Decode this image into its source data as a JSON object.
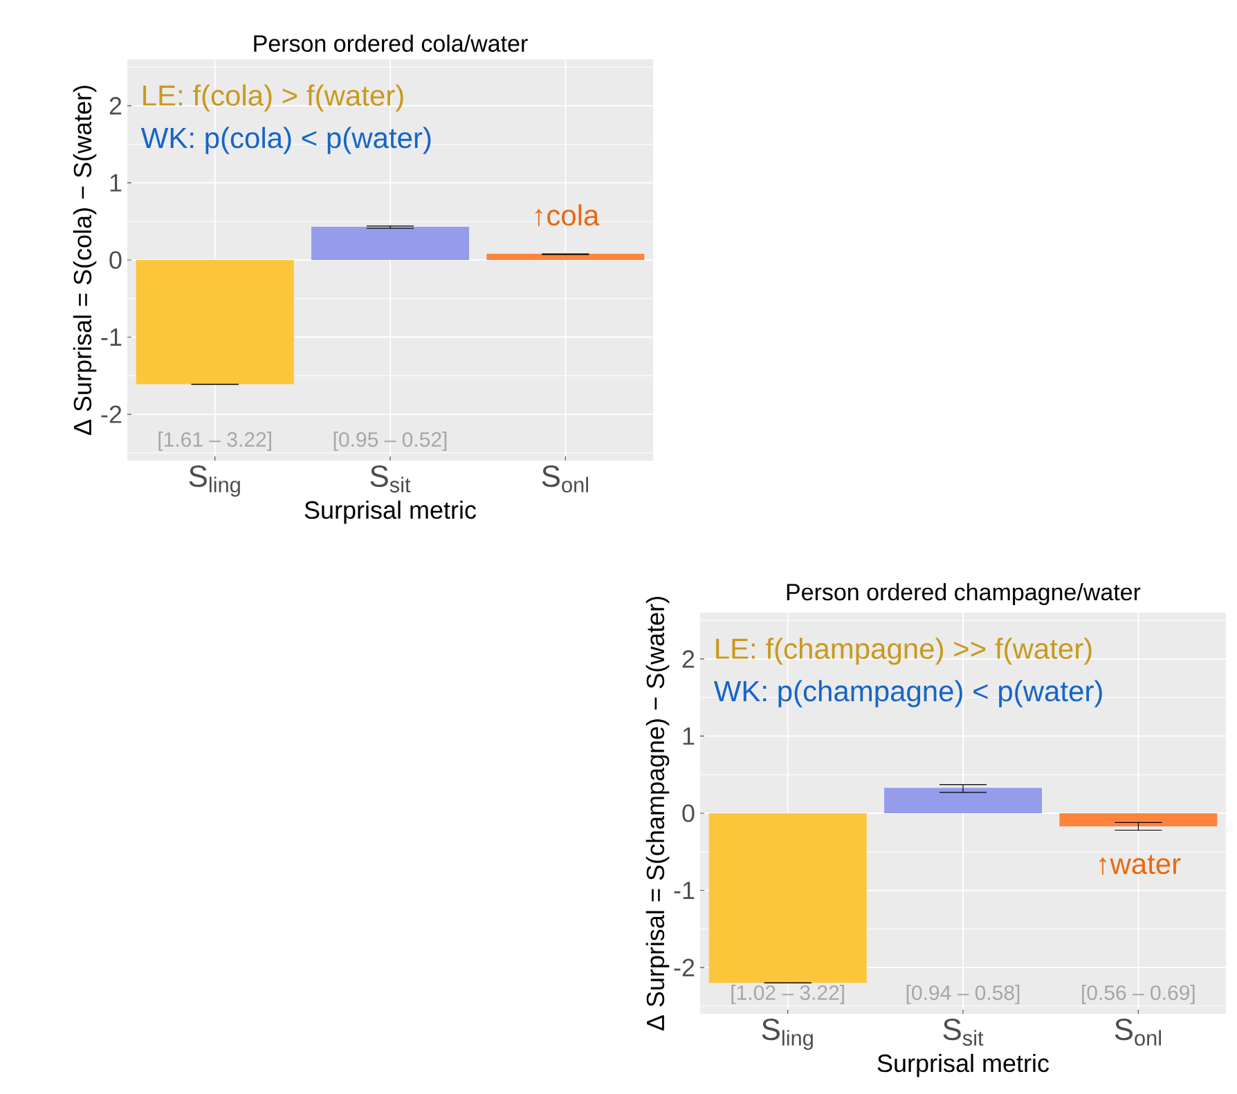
{
  "chart_data": [
    {
      "type": "bar",
      "title": "Person ordered cola/water",
      "xlabel": "Surprisal metric",
      "ylabel": "Δ Surprisal = S(cola) − S(water)",
      "categories": [
        "S$_{ling}$",
        "S$_{sit}$",
        "S$_{onl}$"
      ],
      "values": [
        -1.61,
        0.43,
        0.08
      ],
      "colors": [
        "#fcc63c",
        "#959cec",
        "#fe843d"
      ],
      "errors": [
        [
          -1.61,
          -1.61
        ],
        [
          0.41,
          0.44
        ],
        [
          0.07,
          0.08
        ]
      ],
      "ylim": [
        -2.6,
        2.6
      ],
      "yticks": [
        -2,
        -1,
        0,
        1,
        2
      ],
      "grid": true,
      "annotations": [
        "LE: f(cola) > f(water)",
        "WK: p(cola) < p(water)",
        "↑cola",
        "[1.61 – 3.22]",
        "[0.95 – 0.52]"
      ]
    },
    {
      "type": "bar",
      "title": "Person ordered champagne/water",
      "xlabel": "Surprisal metric",
      "ylabel": "Δ Surprisal = S(champagne) − S(water)",
      "categories": [
        "S$_{ling}$",
        "S$_{sit}$",
        "S$_{onl}$"
      ],
      "values": [
        -2.2,
        0.33,
        -0.17
      ],
      "colors": [
        "#fcc63c",
        "#959cec",
        "#fe843d"
      ],
      "errors": [
        [
          -2.2,
          -2.2
        ],
        [
          0.27,
          0.37
        ],
        [
          -0.22,
          -0.12
        ]
      ],
      "ylim": [
        -2.6,
        2.6
      ],
      "yticks": [
        -2,
        -1,
        0,
        1,
        2
      ],
      "grid": true,
      "annotations": [
        "LE: f(champagne) >> f(water)",
        "WK: p(champagne) < p(water)",
        "↑water",
        "[1.02 – 3.22]",
        "[0.94 – 0.58]",
        "[0.56 – 0.69]"
      ]
    }
  ]
}
